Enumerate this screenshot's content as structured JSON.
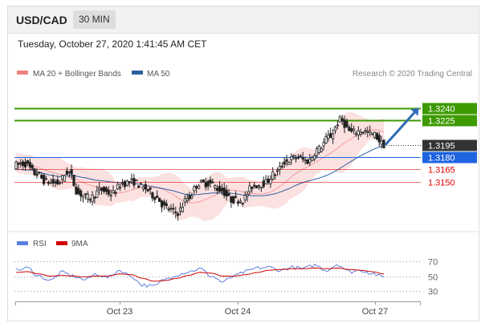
{
  "header": {
    "symbol": "USD/CAD",
    "timeframe": "30 MIN"
  },
  "timestamp": "Tuesday, October 27, 2020 1:41:45 AM CET",
  "legend": {
    "ma20": {
      "label": "MA 20 + Bollinger Bands",
      "color": "#f08080"
    },
    "ma50": {
      "label": "MA 50",
      "color": "#2c5f9e"
    },
    "credit": "Research © 2020 Trading Central"
  },
  "rsi_legend": {
    "rsi": {
      "label": "RSI",
      "color": "#5b7fe0"
    },
    "ma9": {
      "label": "9MA",
      "color": "#d00000"
    }
  },
  "chart_data": {
    "type": "candlestick",
    "x_ticks": [
      "Oct 23",
      "Oct 24",
      "Oct 27"
    ],
    "ylim": [
      1.3095,
      1.3262
    ],
    "levels": [
      {
        "value": 1.324,
        "label": "1.3240",
        "kind": "resistance",
        "color": "#3d9a00"
      },
      {
        "value": 1.3225,
        "label": "1.3225",
        "kind": "resistance",
        "color": "#3d9a00"
      },
      {
        "value": 1.3195,
        "label": "1.3195",
        "kind": "last-price",
        "color": "#333333"
      },
      {
        "value": 1.318,
        "label": "1.3180",
        "kind": "pivot",
        "color": "#1e64e0"
      },
      {
        "value": 1.3165,
        "label": "1.3165",
        "kind": "support",
        "color": "#e00000"
      },
      {
        "value": 1.315,
        "label": "1.3150",
        "kind": "support",
        "color": "#e00000"
      }
    ],
    "price_anchors": [
      1.317,
      1.3172,
      1.316,
      1.315,
      1.3148,
      1.3162,
      1.3135,
      1.313,
      1.314,
      1.3135,
      1.3148,
      1.315,
      1.3142,
      1.3132,
      1.3118,
      1.3112,
      1.313,
      1.3148,
      1.3148,
      1.314,
      1.3128,
      1.3128,
      1.3145,
      1.3148,
      1.316,
      1.3175,
      1.318,
      1.3175,
      1.319,
      1.3205,
      1.3225,
      1.321,
      1.3212,
      1.3208,
      1.3195
    ],
    "rsi": {
      "ylim": [
        20,
        80
      ],
      "levels": [
        70,
        50,
        30
      ],
      "rsi_anchors": [
        58,
        61,
        50,
        44,
        55,
        50,
        45,
        53,
        48,
        58,
        50,
        38,
        36,
        46,
        52,
        56,
        60,
        50,
        42,
        50,
        56,
        61,
        62,
        58,
        62,
        60,
        65,
        58,
        66,
        56,
        58,
        54,
        48
      ],
      "ma9_anchors": [
        55,
        56,
        53,
        50,
        51,
        50,
        49,
        50,
        50,
        53,
        52,
        47,
        43,
        44,
        47,
        51,
        55,
        54,
        50,
        50,
        52,
        55,
        58,
        59,
        60,
        60,
        61,
        60,
        61,
        59,
        58,
        56,
        53
      ]
    }
  }
}
